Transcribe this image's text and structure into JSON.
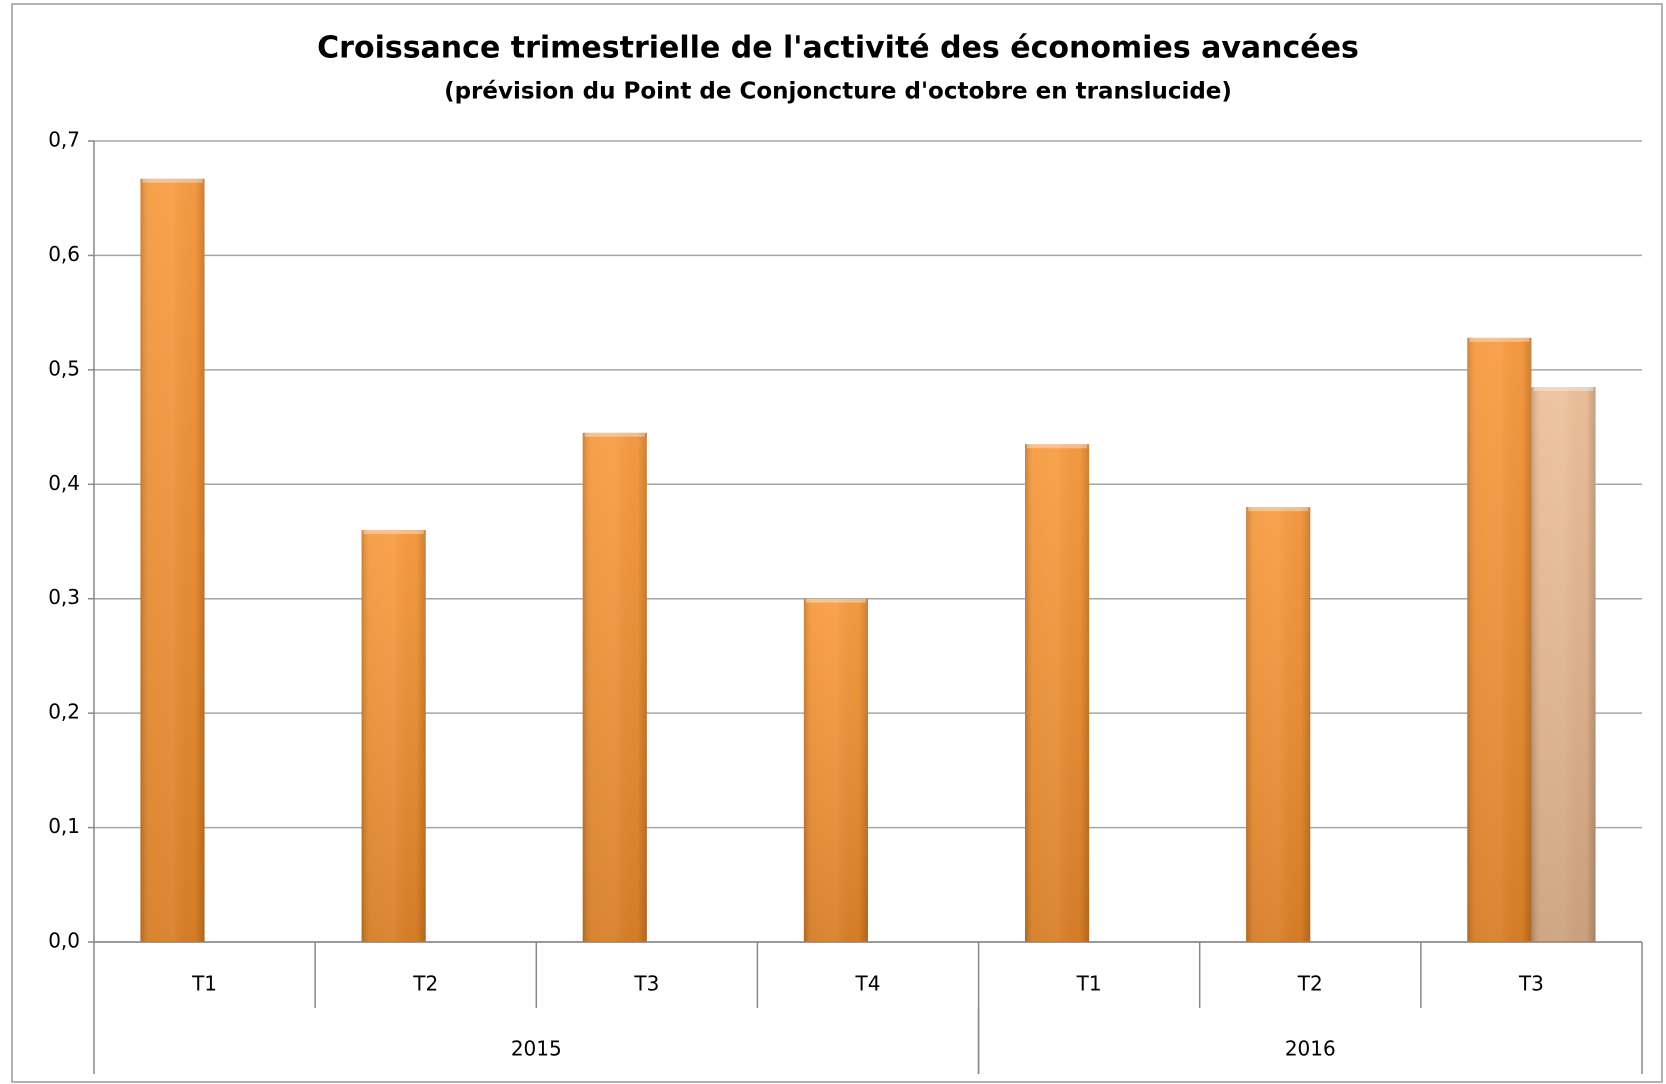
{
  "chart_data": {
    "type": "bar",
    "title": "Croissance trimestrielle de l'activité des économies avancées",
    "subtitle": "(prévision du Point de Conjoncture d'octobre en translucide)",
    "categories": [
      "T1",
      "T2",
      "T3",
      "T4",
      "T1",
      "T2",
      "T3"
    ],
    "category_groups": [
      {
        "label": "2015",
        "count": 4
      },
      {
        "label": "2016",
        "count": 3
      }
    ],
    "series": [
      {
        "color": "#f7902c",
        "values": [
          0.667,
          0.36,
          0.445,
          0.3,
          0.435,
          0.38,
          0.528
        ]
      },
      {
        "color": "#ebb98f",
        "values": [
          null,
          null,
          null,
          null,
          null,
          null,
          0.485
        ]
      }
    ],
    "ylim": [
      0,
      0.7
    ],
    "yticks": [
      {
        "value": 0,
        "label": "0,0"
      },
      {
        "value": 0.1,
        "label": "0,1"
      },
      {
        "value": 0.2,
        "label": "0,2"
      },
      {
        "value": 0.3,
        "label": "0,3"
      },
      {
        "value": 0.4,
        "label": "0,4"
      },
      {
        "value": 0.5,
        "label": "0,5"
      },
      {
        "value": 0.6,
        "label": "0,6"
      },
      {
        "value": 0.7,
        "label": "0,7"
      }
    ],
    "grid": true
  }
}
